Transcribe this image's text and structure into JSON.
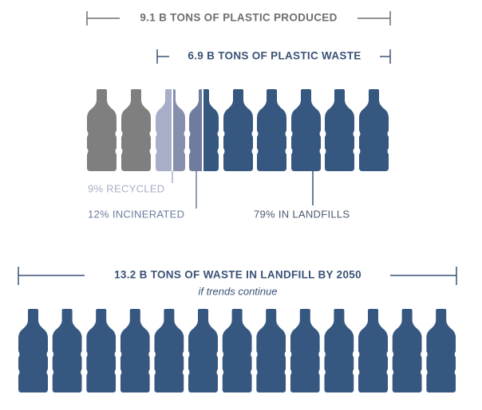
{
  "produced": {
    "label": "9.1 B TONS OF PLASTIC PRODUCED"
  },
  "waste": {
    "label": "6.9 B TONS OF PLASTIC WASTE"
  },
  "breakdown": [
    {
      "label": "9% RECYCLED"
    },
    {
      "label": "12% INCINERATED"
    },
    {
      "label": "79% IN LANDFILLS"
    }
  ],
  "future": {
    "label": "13.2 B TONS OF WASTE IN LANDFILL BY 2050",
    "note": "if trends continue"
  }
}
